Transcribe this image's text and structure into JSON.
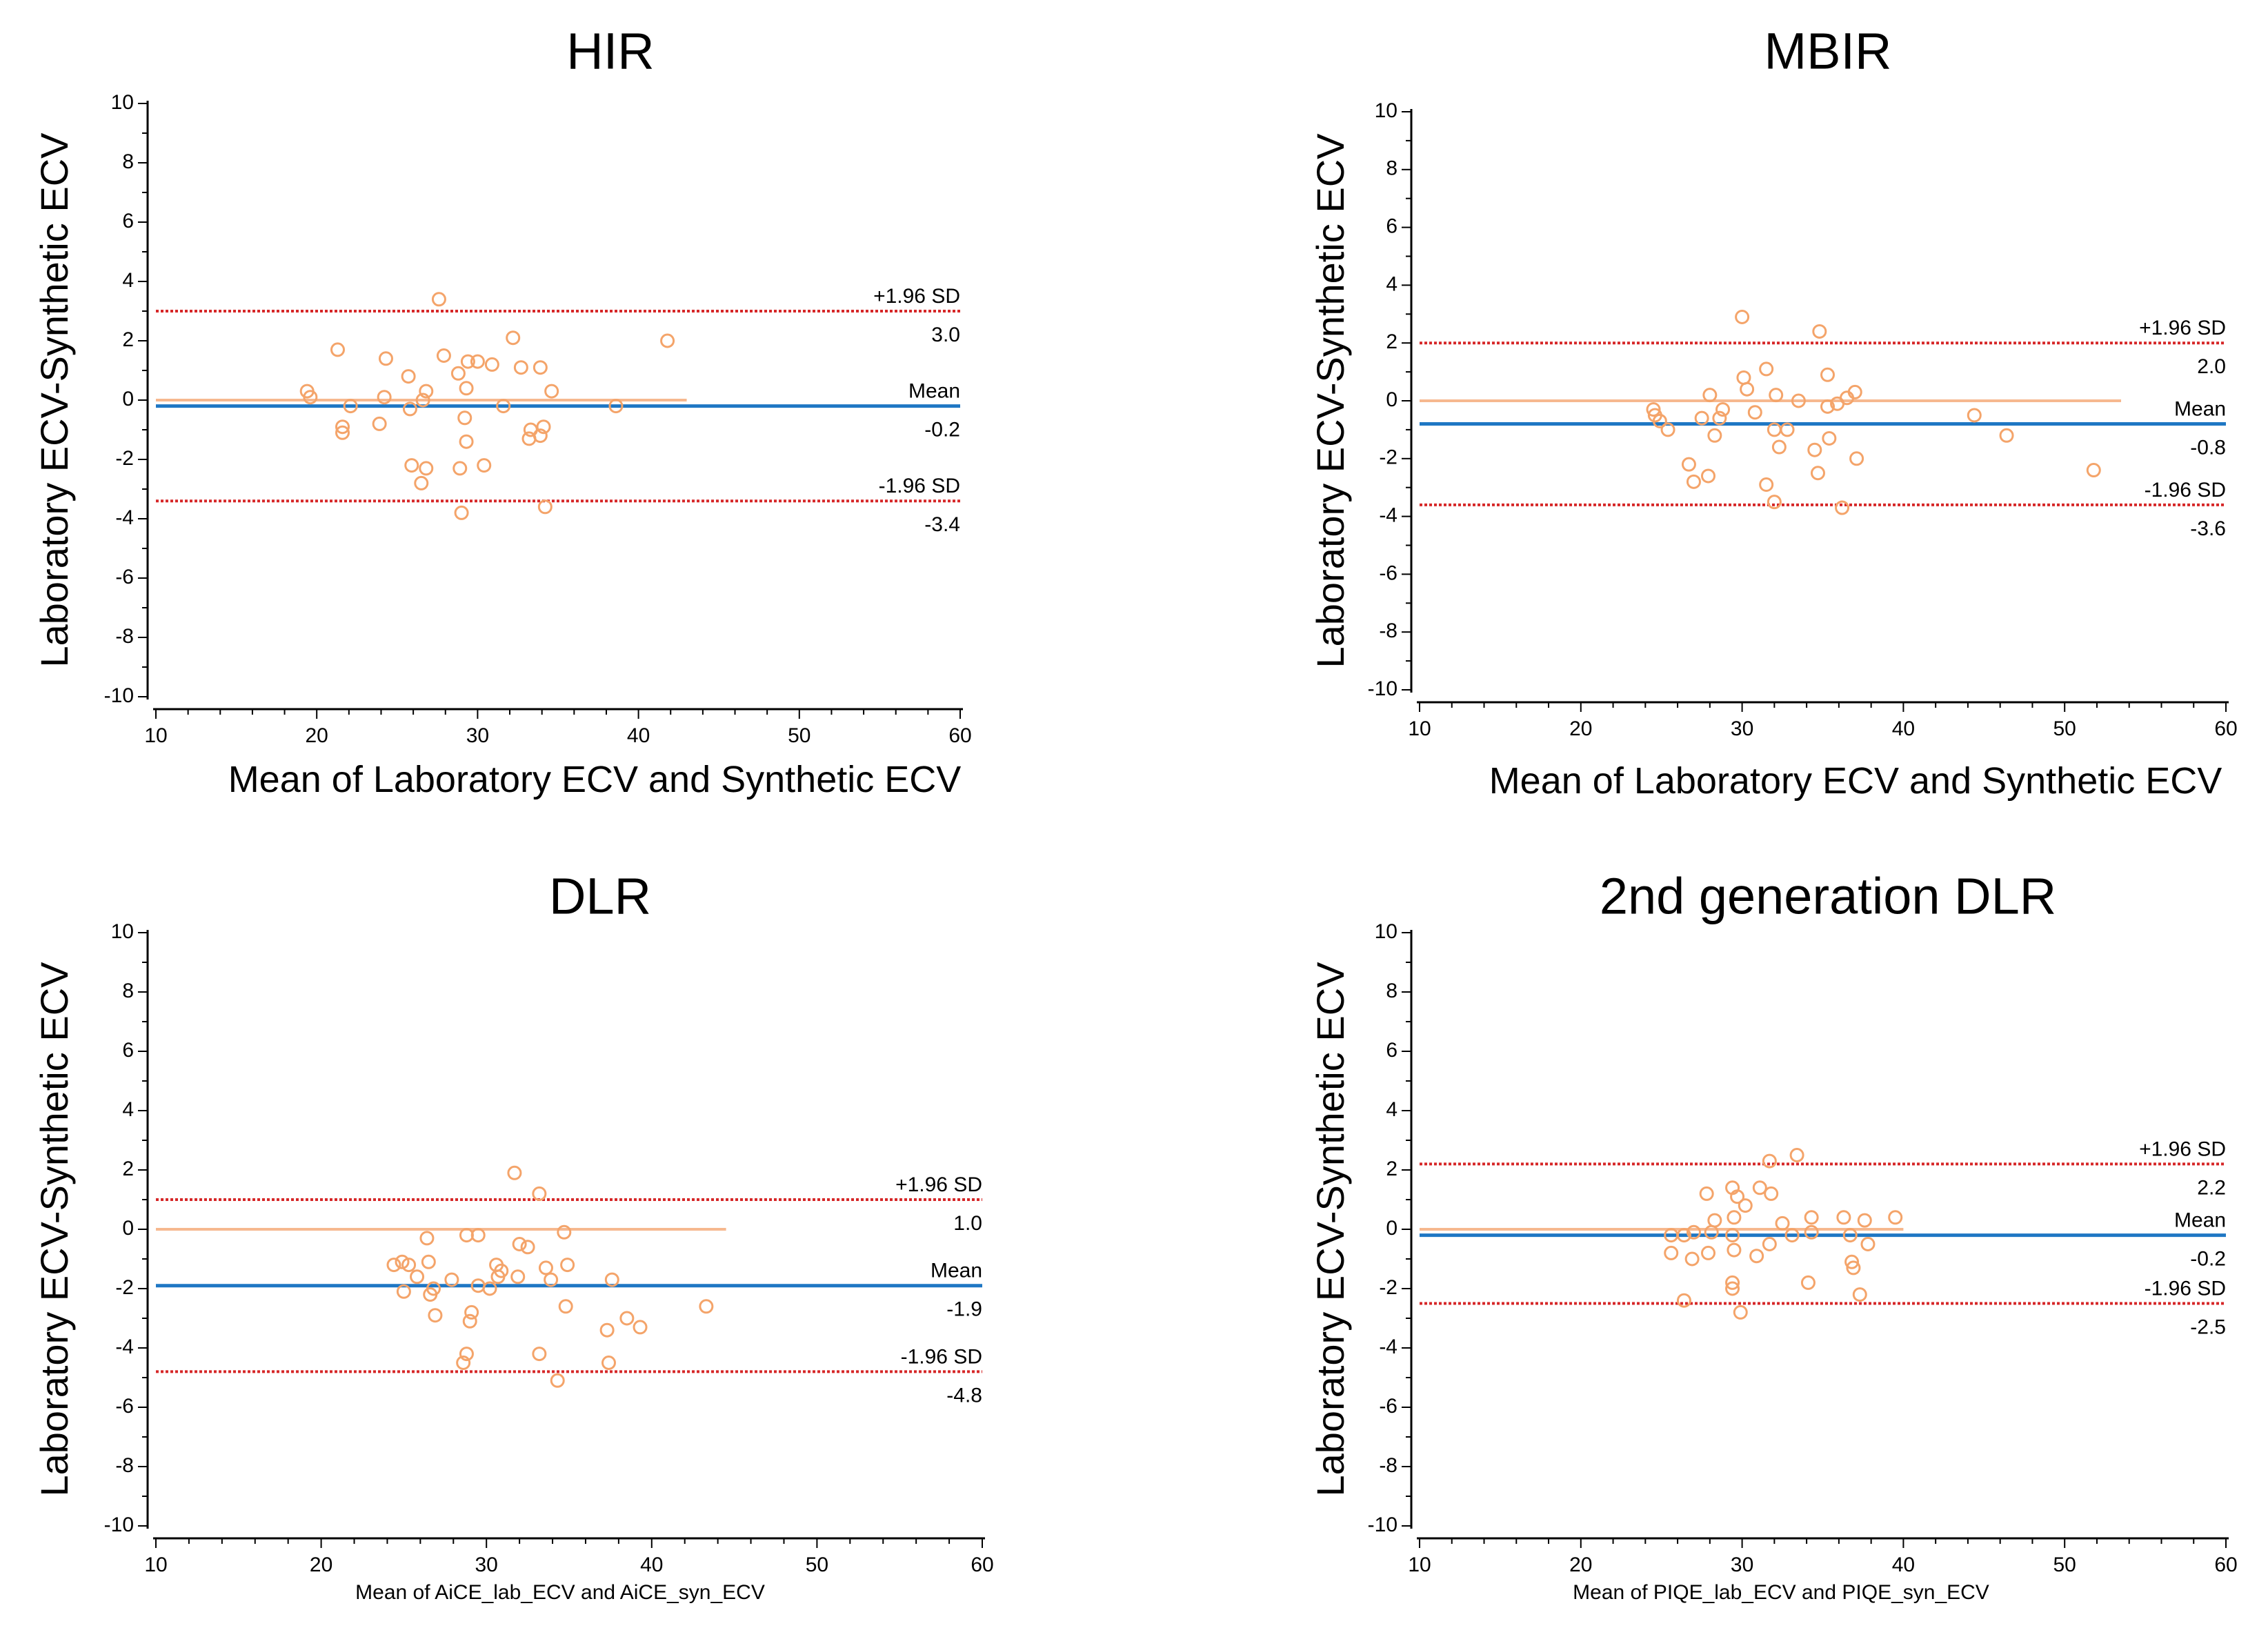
{
  "chart_data": [
    {
      "type": "scatter",
      "title": "HIR",
      "xlabel": "Mean of Laboratory ECV and Synthetic ECV",
      "ylabel": "Laboratory ECV-Synthetic ECV",
      "xlim": [
        10,
        60
      ],
      "ylim": [
        -10,
        10
      ],
      "xticks": [
        "10",
        "20",
        "30",
        "40",
        "50",
        "60"
      ],
      "yticks": [
        "-10",
        "-8",
        "-6",
        "-4",
        "-2",
        "0",
        "2",
        "4",
        "6",
        "8",
        "10"
      ],
      "upper": 3.0,
      "mean": -0.2,
      "lower": -3.4,
      "upper_label": "+1.96 SD",
      "mean_label": "Mean",
      "lower_label": "-1.96 SD",
      "upper_value": "3.0",
      "mean_value": "-0.2",
      "lower_value": "-3.4",
      "fit_x": [
        10,
        43
      ],
      "points": [
        [
          27.6,
          3.4
        ],
        [
          21.3,
          1.7
        ],
        [
          24.3,
          1.4
        ],
        [
          27.9,
          1.5
        ],
        [
          29.4,
          1.3
        ],
        [
          30.0,
          1.3
        ],
        [
          30.9,
          1.2
        ],
        [
          32.2,
          2.1
        ],
        [
          32.7,
          1.1
        ],
        [
          33.9,
          1.1
        ],
        [
          41.8,
          2.0
        ],
        [
          28.8,
          0.9
        ],
        [
          25.7,
          0.8
        ],
        [
          19.4,
          0.3
        ],
        [
          19.6,
          0.1
        ],
        [
          24.2,
          0.1
        ],
        [
          26.8,
          0.3
        ],
        [
          29.3,
          0.4
        ],
        [
          34.6,
          0.3
        ],
        [
          22.1,
          -0.2
        ],
        [
          26.6,
          0.0
        ],
        [
          25.8,
          -0.3
        ],
        [
          31.6,
          -0.2
        ],
        [
          38.6,
          -0.2
        ],
        [
          29.2,
          -0.6
        ],
        [
          21.6,
          -0.9
        ],
        [
          23.9,
          -0.8
        ],
        [
          21.6,
          -1.1
        ],
        [
          34.1,
          -0.9
        ],
        [
          33.3,
          -1.0
        ],
        [
          29.3,
          -1.4
        ],
        [
          33.2,
          -1.3
        ],
        [
          33.9,
          -1.2
        ],
        [
          25.9,
          -2.2
        ],
        [
          26.8,
          -2.3
        ],
        [
          28.9,
          -2.3
        ],
        [
          30.4,
          -2.2
        ],
        [
          26.5,
          -2.8
        ],
        [
          29.0,
          -3.8
        ],
        [
          34.2,
          -3.6
        ]
      ]
    },
    {
      "type": "scatter",
      "title": "MBIR",
      "xlabel": "Mean of Laboratory ECV and Synthetic ECV",
      "ylabel": "Laboratory ECV-Synthetic ECV",
      "xlim": [
        10,
        60
      ],
      "ylim": [
        -10,
        10
      ],
      "xticks": [
        "10",
        "20",
        "30",
        "40",
        "50",
        "60"
      ],
      "yticks": [
        "-10",
        "-8",
        "-6",
        "-4",
        "-2",
        "0",
        "2",
        "4",
        "6",
        "8",
        "10"
      ],
      "upper": 2.0,
      "mean": -0.8,
      "lower": -3.6,
      "upper_label": "+1.96 SD",
      "mean_label": "Mean",
      "lower_label": "-1.96 SD",
      "upper_value": "2.0",
      "mean_value": "-0.8",
      "lower_value": "-3.6",
      "fit_x": [
        10,
        53.5
      ],
      "points": [
        [
          30.0,
          2.9
        ],
        [
          34.8,
          2.4
        ],
        [
          31.5,
          1.1
        ],
        [
          35.3,
          0.9
        ],
        [
          30.1,
          0.8
        ],
        [
          30.3,
          0.4
        ],
        [
          28.0,
          0.2
        ],
        [
          32.1,
          0.2
        ],
        [
          37.0,
          0.3
        ],
        [
          36.5,
          0.1
        ],
        [
          33.5,
          0.0
        ],
        [
          35.9,
          -0.1
        ],
        [
          35.3,
          -0.2
        ],
        [
          24.5,
          -0.3
        ],
        [
          24.6,
          -0.5
        ],
        [
          28.8,
          -0.3
        ],
        [
          30.8,
          -0.4
        ],
        [
          27.5,
          -0.6
        ],
        [
          28.6,
          -0.6
        ],
        [
          24.9,
          -0.7
        ],
        [
          25.4,
          -1.0
        ],
        [
          32.0,
          -1.0
        ],
        [
          32.8,
          -1.0
        ],
        [
          28.3,
          -1.2
        ],
        [
          35.4,
          -1.3
        ],
        [
          32.3,
          -1.6
        ],
        [
          34.5,
          -1.7
        ],
        [
          44.4,
          -0.5
        ],
        [
          46.4,
          -1.2
        ],
        [
          26.7,
          -2.2
        ],
        [
          27.9,
          -2.6
        ],
        [
          37.1,
          -2.0
        ],
        [
          34.7,
          -2.5
        ],
        [
          51.8,
          -2.4
        ],
        [
          27.0,
          -2.8
        ],
        [
          31.5,
          -2.9
        ],
        [
          32.0,
          -3.5
        ],
        [
          36.2,
          -3.7
        ]
      ]
    },
    {
      "type": "scatter",
      "title": "DLR",
      "xlabel": "Mean of AiCE_lab_ECV and AiCE_syn_ECV",
      "ylabel": "Laboratory ECV-Synthetic ECV",
      "xlim": [
        10,
        60
      ],
      "ylim": [
        -10,
        10
      ],
      "xticks": [
        "10",
        "20",
        "30",
        "40",
        "50",
        "60"
      ],
      "yticks": [
        "-10",
        "-8",
        "-6",
        "-4",
        "-2",
        "0",
        "2",
        "4",
        "6",
        "8",
        "10"
      ],
      "upper": 1.0,
      "mean": -1.9,
      "lower": -4.8,
      "upper_label": "+1.96 SD",
      "mean_label": "Mean",
      "lower_label": "-1.96 SD",
      "upper_value": "1.0",
      "mean_value": "-1.9",
      "lower_value": "-4.8",
      "fit_x": [
        10,
        44.5
      ],
      "points": [
        [
          31.7,
          1.9
        ],
        [
          33.2,
          1.2
        ],
        [
          26.4,
          -0.3
        ],
        [
          28.8,
          -0.2
        ],
        [
          29.5,
          -0.2
        ],
        [
          34.7,
          -0.1
        ],
        [
          32.0,
          -0.5
        ],
        [
          32.5,
          -0.6
        ],
        [
          24.4,
          -1.2
        ],
        [
          25.3,
          -1.2
        ],
        [
          24.9,
          -1.1
        ],
        [
          26.5,
          -1.1
        ],
        [
          30.6,
          -1.2
        ],
        [
          30.9,
          -1.4
        ],
        [
          30.7,
          -1.6
        ],
        [
          33.6,
          -1.3
        ],
        [
          34.9,
          -1.2
        ],
        [
          25.8,
          -1.6
        ],
        [
          27.9,
          -1.7
        ],
        [
          33.9,
          -1.7
        ],
        [
          37.6,
          -1.7
        ],
        [
          25.0,
          -2.1
        ],
        [
          26.8,
          -2.0
        ],
        [
          26.6,
          -2.2
        ],
        [
          29.5,
          -1.9
        ],
        [
          30.2,
          -2.0
        ],
        [
          31.9,
          -1.6
        ],
        [
          29.1,
          -2.8
        ],
        [
          26.9,
          -2.9
        ],
        [
          29.0,
          -3.1
        ],
        [
          34.8,
          -2.6
        ],
        [
          38.5,
          -3.0
        ],
        [
          39.3,
          -3.3
        ],
        [
          37.3,
          -3.4
        ],
        [
          43.3,
          -2.6
        ],
        [
          28.8,
          -4.2
        ],
        [
          33.2,
          -4.2
        ],
        [
          28.6,
          -4.5
        ],
        [
          37.4,
          -4.5
        ],
        [
          34.3,
          -5.1
        ]
      ]
    },
    {
      "type": "scatter",
      "title": "2nd generation  DLR",
      "xlabel": "Mean of PIQE_lab_ECV and PIQE_syn_ECV",
      "ylabel": "Laboratory ECV-Synthetic ECV",
      "xlim": [
        10,
        60
      ],
      "ylim": [
        -10,
        10
      ],
      "xticks": [
        "10",
        "20",
        "30",
        "40",
        "50",
        "60"
      ],
      "yticks": [
        "-10",
        "-8",
        "-6",
        "-4",
        "-2",
        "0",
        "2",
        "4",
        "6",
        "8",
        "10"
      ],
      "upper": 2.2,
      "mean": -0.2,
      "lower": -2.5,
      "upper_label": "+1.96 SD",
      "mean_label": "Mean",
      "lower_label": "-1.96 SD",
      "upper_value": "2.2",
      "mean_value": "-0.2",
      "lower_value": "-2.5",
      "fit_x": [
        10,
        40
      ],
      "points": [
        [
          33.4,
          2.5
        ],
        [
          31.7,
          2.3
        ],
        [
          29.4,
          1.4
        ],
        [
          27.8,
          1.2
        ],
        [
          31.1,
          1.4
        ],
        [
          31.8,
          1.2
        ],
        [
          29.7,
          1.1
        ],
        [
          30.2,
          0.8
        ],
        [
          29.5,
          0.4
        ],
        [
          28.3,
          0.3
        ],
        [
          32.5,
          0.2
        ],
        [
          36.3,
          0.4
        ],
        [
          37.6,
          0.3
        ],
        [
          39.5,
          0.4
        ],
        [
          34.3,
          0.4
        ],
        [
          25.6,
          -0.2
        ],
        [
          26.4,
          -0.2
        ],
        [
          27.0,
          -0.1
        ],
        [
          28.1,
          -0.1
        ],
        [
          29.4,
          -0.2
        ],
        [
          33.1,
          -0.2
        ],
        [
          34.3,
          -0.1
        ],
        [
          36.7,
          -0.2
        ],
        [
          37.8,
          -0.5
        ],
        [
          25.6,
          -0.8
        ],
        [
          26.9,
          -1.0
        ],
        [
          27.9,
          -0.8
        ],
        [
          29.5,
          -0.7
        ],
        [
          31.7,
          -0.5
        ],
        [
          30.9,
          -0.9
        ],
        [
          36.8,
          -1.1
        ],
        [
          36.9,
          -1.3
        ],
        [
          29.4,
          -1.8
        ],
        [
          34.1,
          -1.8
        ],
        [
          29.4,
          -2.0
        ],
        [
          37.3,
          -2.2
        ],
        [
          26.4,
          -2.4
        ],
        [
          29.9,
          -2.8
        ]
      ]
    }
  ],
  "colors": {
    "points": "#f4a46a",
    "fit_line": "#f6b88f",
    "mean_line": "#1f77c4",
    "sd_line": "#d62728",
    "axis": "#000000"
  }
}
